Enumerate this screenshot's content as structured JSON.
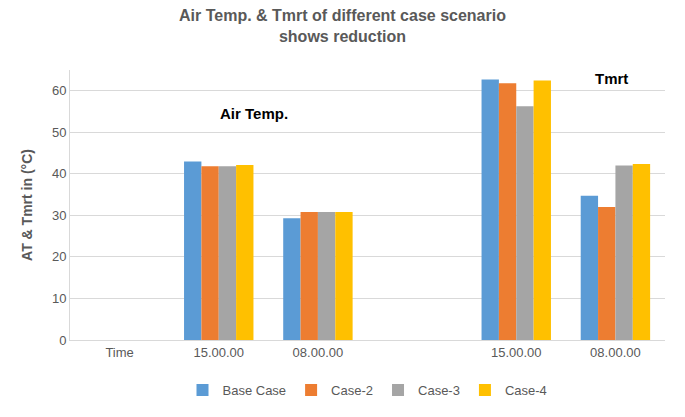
{
  "chart_data": {
    "type": "bar",
    "title": "Air Temp. & Tmrt of different case scenario\nshows reduction",
    "y_label": "AT & Tmrt in (°C)",
    "categories": [
      "Time",
      "15.00.00",
      "08.00.00",
      null,
      "15.00.00",
      "08.00.00"
    ],
    "series": [
      {
        "name": "Base Case",
        "color": "#5b9bd5",
        "values": [
          null,
          43,
          29.3,
          null,
          62.7,
          34.7
        ]
      },
      {
        "name": "Case-2",
        "color": "#ed7d31",
        "values": [
          null,
          41.8,
          30.8,
          null,
          61.8,
          32
        ]
      },
      {
        "name": "Case-3",
        "color": "#a5a5a5",
        "values": [
          null,
          41.8,
          30.8,
          null,
          56.3,
          42
        ]
      },
      {
        "name": "Case-4",
        "color": "#ffc000",
        "values": [
          null,
          42.1,
          30.8,
          null,
          62.5,
          42.4
        ]
      }
    ],
    "ylim": [
      0,
      65
    ],
    "yticks": [
      0,
      10,
      20,
      30,
      40,
      50,
      60
    ],
    "grid": true,
    "legend": "bottom",
    "annotations": [
      {
        "text": "Air Temp."
      },
      {
        "text": "Tmrt"
      }
    ]
  }
}
